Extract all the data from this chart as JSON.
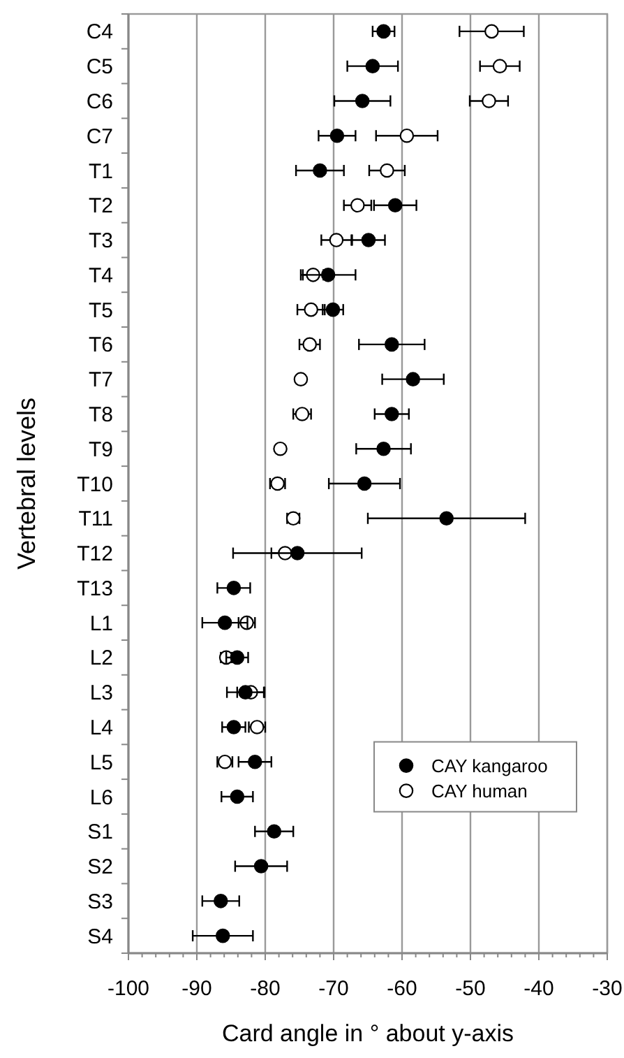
{
  "chart_data": {
    "type": "scatter",
    "orientation": "horizontal",
    "xlabel": "Card angle in ° about y-axis",
    "ylabel": "Vertebral levels",
    "categories": [
      "C4",
      "C5",
      "C6",
      "C7",
      "T1",
      "T2",
      "T3",
      "T4",
      "T5",
      "T6",
      "T7",
      "T8",
      "T9",
      "T10",
      "T11",
      "T12",
      "T13",
      "L1",
      "L2",
      "L3",
      "L4",
      "L5",
      "L6",
      "S1",
      "S2",
      "S3",
      "S4"
    ],
    "series": [
      {
        "name": "CAY kangaroo",
        "color": "#000000",
        "values": [
          -62.7,
          -64.3,
          -65.8,
          -69.5,
          -72.0,
          -61.0,
          -64.9,
          -70.8,
          -70.1,
          -61.5,
          -58.4,
          -61.5,
          -62.7,
          -65.5,
          -53.5,
          -75.3,
          -84.6,
          -85.9,
          -84.1,
          -82.9,
          -84.6,
          -81.5,
          -84.1,
          -78.7,
          -80.6,
          -86.5,
          -86.2
        ],
        "errors": [
          1.6,
          3.7,
          4.1,
          2.7,
          3.5,
          3.1,
          2.4,
          4.0,
          1.5,
          4.8,
          4.5,
          2.5,
          4.0,
          5.2,
          11.5,
          9.4,
          2.4,
          3.3,
          1.6,
          2.7,
          1.7,
          2.4,
          2.3,
          2.8,
          3.8,
          2.7,
          4.4
        ]
      },
      {
        "name": "CAY human",
        "color": "#ffffff",
        "values": [
          -46.9,
          -45.7,
          -47.3,
          -59.3,
          -62.2,
          -66.5,
          -69.6,
          -73.0,
          -73.3,
          -73.5,
          -74.8,
          -74.6,
          -77.8,
          -78.2,
          -75.9,
          -77.1,
          null,
          -82.7,
          -85.7,
          -82.1,
          -81.2,
          -85.9,
          null,
          null,
          null,
          null,
          null
        ],
        "errors": [
          4.7,
          2.9,
          2.8,
          4.5,
          2.6,
          2.0,
          2.2,
          1.5,
          2.0,
          1.5,
          0.5,
          1.3,
          0.3,
          1.1,
          0.9,
          2.0,
          null,
          1.2,
          0.8,
          2.0,
          1.2,
          1.1,
          null,
          null,
          null,
          null,
          null
        ]
      }
    ],
    "xlim": [
      -100,
      -30
    ],
    "xticks": [
      -100,
      {
        "value": -98,
        "label": null
      },
      {
        "value": -96,
        "label": null
      },
      {
        "value": -94,
        "label": null
      },
      {
        "value": -92,
        "label": null
      },
      -90,
      {
        "value": -88,
        "label": null
      },
      {
        "value": -86,
        "label": null
      },
      {
        "value": -84,
        "label": null
      },
      {
        "value": -82,
        "label": null
      },
      -80,
      {
        "value": -78,
        "label": null
      },
      {
        "value": -76,
        "label": null
      },
      {
        "value": -74,
        "label": null
      },
      {
        "value": -72,
        "label": null
      },
      -70,
      {
        "value": -68,
        "label": null
      },
      {
        "value": -66,
        "label": null
      },
      {
        "value": -64,
        "label": null
      },
      {
        "value": -62,
        "label": null
      },
      -60,
      {
        "value": -58,
        "label": null
      },
      {
        "value": -56,
        "label": null
      },
      {
        "value": -54,
        "label": null
      },
      {
        "value": -52,
        "label": null
      },
      -50,
      {
        "value": -48,
        "label": null
      },
      {
        "value": -46,
        "label": null
      },
      {
        "value": -44,
        "label": null
      },
      {
        "value": -42,
        "label": null
      },
      -40,
      {
        "value": -38,
        "label": null
      },
      {
        "value": -36,
        "label": null
      },
      {
        "value": -34,
        "label": null
      },
      {
        "value": -32,
        "label": null
      },
      -30
    ],
    "grid": "x",
    "legend": "bottom right",
    "marker": "circle"
  }
}
